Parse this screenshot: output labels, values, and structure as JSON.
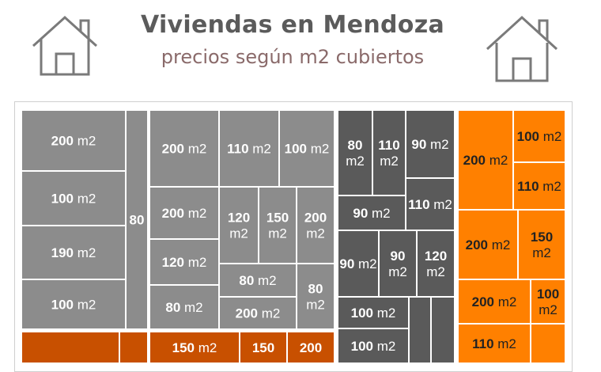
{
  "header": {
    "title": "Viviendas en Mendoza",
    "subtitle": "precios según m2 cubiertos"
  },
  "icons": {
    "left": "house-icon",
    "right": "house-icon"
  },
  "colors": {
    "gray_light": "#8c8c8c",
    "gray_dark": "#5a5a5a",
    "orange": "#ff8000",
    "orange_dark": "#c85000",
    "white": "#ffffff",
    "text_on_orange": "#222222"
  },
  "chart_data": {
    "type": "treemap",
    "title": "Viviendas en Mendoza",
    "subtitle": "precios según m2 cubiertos",
    "tiles": [
      {
        "label": "200 m2",
        "group": "gray_light"
      },
      {
        "label": "100 m2",
        "group": "gray_light"
      },
      {
        "label": "190 m2",
        "group": "gray_light"
      },
      {
        "label": "100 m2",
        "group": "gray_light"
      },
      {
        "label": "80",
        "group": "gray_light"
      },
      {
        "label": "200 m2",
        "group": "gray_light"
      },
      {
        "label": "110 m2",
        "group": "gray_light"
      },
      {
        "label": "100 m2",
        "group": "gray_light"
      },
      {
        "label": "200 m2",
        "group": "gray_light"
      },
      {
        "label": "120 m2",
        "group": "gray_light"
      },
      {
        "label": "150 m2",
        "group": "gray_light"
      },
      {
        "label": "200 m2",
        "group": "gray_light"
      },
      {
        "label": "120 m2",
        "group": "gray_light"
      },
      {
        "label": "80 m2",
        "group": "gray_light"
      },
      {
        "label": "80 m2",
        "group": "gray_light"
      },
      {
        "label": "200 m2",
        "group": "gray_light"
      },
      {
        "label": "80 m2",
        "group": "gray_light"
      },
      {
        "label": "80 m2",
        "group": "gray_dark"
      },
      {
        "label": "110 m2",
        "group": "gray_dark"
      },
      {
        "label": "90 m2",
        "group": "gray_dark"
      },
      {
        "label": "90 m2",
        "group": "gray_dark"
      },
      {
        "label": "110 m2",
        "group": "gray_dark"
      },
      {
        "label": "90 m2",
        "group": "gray_dark"
      },
      {
        "label": "90 m2",
        "group": "gray_dark"
      },
      {
        "label": "120 m2",
        "group": "gray_dark"
      },
      {
        "label": "100 m2",
        "group": "gray_dark"
      },
      {
        "label": "100 m2",
        "group": "gray_dark"
      },
      {
        "label": "",
        "group": "gray_dark"
      },
      {
        "label": "",
        "group": "gray_dark"
      },
      {
        "label": "200 m2",
        "group": "orange"
      },
      {
        "label": "100 m2",
        "group": "orange"
      },
      {
        "label": "110 m2",
        "group": "orange"
      },
      {
        "label": "200 m2",
        "group": "orange"
      },
      {
        "label": "150 m2",
        "group": "orange"
      },
      {
        "label": "200 m2",
        "group": "orange"
      },
      {
        "label": "100 m2",
        "group": "orange"
      },
      {
        "label": "110 m2",
        "group": "orange"
      },
      {
        "label": "",
        "group": "orange"
      },
      {
        "label": "",
        "group": "orange_dark"
      },
      {
        "label": "",
        "group": "orange_dark"
      },
      {
        "label": "150 m2",
        "group": "orange_dark"
      },
      {
        "label": "150",
        "group": "orange_dark"
      },
      {
        "label": "200",
        "group": "orange_dark"
      }
    ]
  }
}
